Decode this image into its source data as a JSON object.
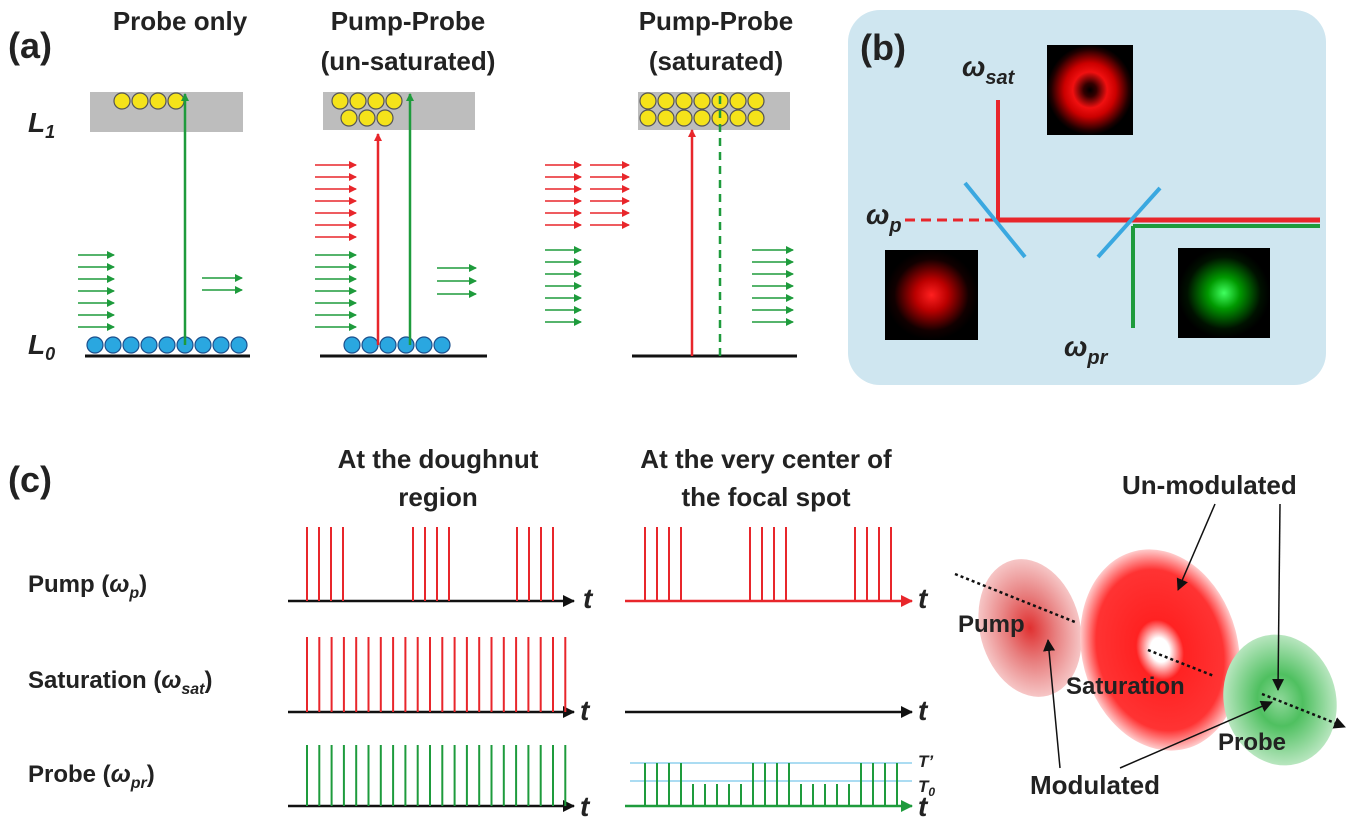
{
  "panel_a": {
    "label": "(a)",
    "titles": [
      [
        "Probe only"
      ],
      [
        "Pump-Probe",
        "(un-saturated)"
      ],
      [
        "Pump-Probe",
        "(saturated)"
      ]
    ],
    "levels": [
      {
        "symbol": "L",
        "subscript": "1"
      },
      {
        "symbol": "L",
        "subscript": "0"
      }
    ]
  },
  "panel_b": {
    "label": "(b)",
    "beams": [
      {
        "symbol": "ω",
        "subscript": "sat"
      },
      {
        "symbol": "ω",
        "subscript": "p"
      },
      {
        "symbol": "ω",
        "subscript": "pr"
      }
    ]
  },
  "panel_c": {
    "label": "(c)",
    "columns": [
      [
        "At the doughnut",
        "region"
      ],
      [
        "At the very center of",
        "the focal spot"
      ]
    ],
    "rows": [
      {
        "prefix": "Pump (",
        "symbol": "ω",
        "subscript": "p",
        "suffix": ")"
      },
      {
        "prefix": "Saturation (",
        "symbol": "ω",
        "subscript": "sat",
        "suffix": ")"
      },
      {
        "prefix": "Probe (",
        "symbol": "ω",
        "subscript": "pr",
        "suffix": ")"
      }
    ],
    "time_axis": [
      "t",
      "t",
      "t",
      "t",
      "t",
      "t"
    ],
    "thresholds": [
      {
        "text": "T’"
      },
      {
        "symbol": "T",
        "subscript": "0"
      }
    ],
    "spots": [
      "Pump",
      "Saturation",
      "Probe"
    ],
    "callouts": [
      "Un-modulated",
      "Modulated"
    ]
  }
}
